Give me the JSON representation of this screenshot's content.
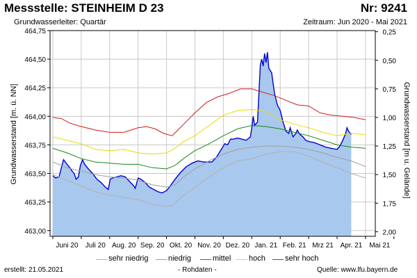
{
  "header": {
    "title": "Messstelle: STEINHEIM D 23",
    "number": "Nr: 9241",
    "aquifer": "Grundwasserleiter: Quartär",
    "period": "Zeitraum: Jun 2020 - Mai 2021"
  },
  "footer": {
    "created": "erstellt:  21.05.2021",
    "raw": "- Rohdaten -",
    "source": "Quelle:  www.lfu.bayern.de"
  },
  "colors": {
    "level_fill": "#a9c8ee",
    "level_line": "#0000cc",
    "sehr_niedrig": "#b0b0b0",
    "niedrig": "#a39c98",
    "mittel": "#148a14",
    "hoch": "#e6dc00",
    "sehr_hoch": "#d81818"
  },
  "chart_data": {
    "type": "area",
    "ylabel": "Grundwasserstand [m. ü. NN]",
    "ylabel_right": "Grundwasserstand [m u. Gelände]",
    "ylim": [
      462.95,
      464.75
    ],
    "yticks": [
      "463,00",
      "463,25",
      "463,50",
      "463,75",
      "464,00",
      "464,25",
      "464,50",
      "464,75"
    ],
    "yticks_right": [
      "0,25",
      "0,50",
      "0,75",
      "1,00",
      "1,25",
      "1,50",
      "1,75",
      "2,00"
    ],
    "x_labels": [
      "Juni 20",
      "Juli 20",
      "Aug. 20",
      "Sep. 20",
      "Okt. 20",
      "Nov. 20",
      "Dez. 20",
      "Jan. 21",
      "Feb. 21",
      "Mrz 21",
      "Apr. 21",
      "Mai 21"
    ],
    "grid": true,
    "legend_position": "bottom",
    "legend": [
      "sehr niedrig",
      "niedrig",
      "mittel",
      "hoch",
      "sehr hoch"
    ],
    "series": [
      {
        "name": "Rohdaten",
        "points": [
          [
            0,
            463.48
          ],
          [
            0.1,
            463.46
          ],
          [
            0.22,
            463.47
          ],
          [
            0.3,
            463.55
          ],
          [
            0.38,
            463.62
          ],
          [
            0.5,
            463.58
          ],
          [
            0.6,
            463.55
          ],
          [
            0.68,
            463.52
          ],
          [
            0.75,
            463.5
          ],
          [
            0.82,
            463.45
          ],
          [
            0.9,
            463.47
          ],
          [
            0.97,
            463.57
          ],
          [
            1.05,
            463.62
          ],
          [
            1.12,
            463.58
          ],
          [
            1.25,
            463.54
          ],
          [
            1.4,
            463.5
          ],
          [
            1.55,
            463.45
          ],
          [
            1.7,
            463.42
          ],
          [
            1.85,
            463.38
          ],
          [
            1.95,
            463.36
          ],
          [
            2.02,
            463.45
          ],
          [
            2.1,
            463.46
          ],
          [
            2.25,
            463.47
          ],
          [
            2.4,
            463.48
          ],
          [
            2.55,
            463.47
          ],
          [
            2.7,
            463.43
          ],
          [
            2.85,
            463.39
          ],
          [
            2.9,
            463.37
          ],
          [
            3.0,
            463.46
          ],
          [
            3.1,
            463.45
          ],
          [
            3.25,
            463.42
          ],
          [
            3.4,
            463.38
          ],
          [
            3.55,
            463.36
          ],
          [
            3.7,
            463.34
          ],
          [
            3.85,
            463.33
          ],
          [
            4.0,
            463.35
          ],
          [
            4.1,
            463.38
          ],
          [
            4.3,
            463.45
          ],
          [
            4.5,
            463.51
          ],
          [
            4.7,
            463.56
          ],
          [
            4.9,
            463.59
          ],
          [
            5.1,
            463.61
          ],
          [
            5.3,
            463.6
          ],
          [
            5.5,
            463.6
          ],
          [
            5.6,
            463.6
          ],
          [
            5.75,
            463.64
          ],
          [
            5.9,
            463.7
          ],
          [
            6.05,
            463.76
          ],
          [
            6.15,
            463.75
          ],
          [
            6.25,
            463.8
          ],
          [
            6.35,
            463.8
          ],
          [
            6.5,
            463.81
          ],
          [
            6.65,
            463.8
          ],
          [
            6.8,
            463.79
          ],
          [
            6.95,
            463.82
          ],
          [
            7.0,
            463.9
          ],
          [
            7.05,
            464.0
          ],
          [
            7.1,
            463.92
          ],
          [
            7.2,
            463.95
          ],
          [
            7.3,
            464.45
          ],
          [
            7.35,
            464.5
          ],
          [
            7.4,
            464.44
          ],
          [
            7.45,
            464.55
          ],
          [
            7.5,
            464.47
          ],
          [
            7.55,
            464.56
          ],
          [
            7.6,
            464.42
          ],
          [
            7.7,
            464.38
          ],
          [
            7.8,
            464.2
          ],
          [
            7.9,
            464.1
          ],
          [
            8.0,
            464.05
          ],
          [
            8.1,
            463.95
          ],
          [
            8.2,
            463.87
          ],
          [
            8.3,
            463.85
          ],
          [
            8.35,
            463.9
          ],
          [
            8.45,
            463.82
          ],
          [
            8.55,
            463.85
          ],
          [
            8.6,
            463.88
          ],
          [
            8.7,
            463.84
          ],
          [
            8.8,
            463.82
          ],
          [
            8.9,
            463.79
          ],
          [
            9.0,
            463.78
          ],
          [
            9.2,
            463.77
          ],
          [
            9.4,
            463.75
          ],
          [
            9.6,
            463.73
          ],
          [
            9.8,
            463.72
          ],
          [
            10.0,
            463.71
          ],
          [
            10.1,
            463.74
          ],
          [
            10.2,
            463.79
          ],
          [
            10.3,
            463.85
          ],
          [
            10.35,
            463.9
          ],
          [
            10.4,
            463.87
          ],
          [
            10.5,
            463.84
          ]
        ]
      },
      {
        "name": "sehr niedrig",
        "points": [
          [
            0,
            463.49
          ],
          [
            0.5,
            463.44
          ],
          [
            1.0,
            463.39
          ],
          [
            1.5,
            463.34
          ],
          [
            2.0,
            463.31
          ],
          [
            2.5,
            463.29
          ],
          [
            3.0,
            463.27
          ],
          [
            3.5,
            463.23
          ],
          [
            4.0,
            463.21
          ],
          [
            4.2,
            463.22
          ],
          [
            4.5,
            463.29
          ],
          [
            5.0,
            463.38
          ],
          [
            5.5,
            463.47
          ],
          [
            6.0,
            463.55
          ],
          [
            6.5,
            463.61
          ],
          [
            7.0,
            463.63
          ],
          [
            7.5,
            463.67
          ],
          [
            8.0,
            463.69
          ],
          [
            8.5,
            463.69
          ],
          [
            9.0,
            463.65
          ],
          [
            9.5,
            463.6
          ],
          [
            10.0,
            463.55
          ],
          [
            10.5,
            463.5
          ],
          [
            11.0,
            463.46
          ]
        ]
      },
      {
        "name": "niedrig",
        "points": [
          [
            0,
            463.6
          ],
          [
            0.5,
            463.55
          ],
          [
            1.0,
            463.52
          ],
          [
            1.5,
            463.49
          ],
          [
            2.0,
            463.47
          ],
          [
            2.5,
            463.46
          ],
          [
            3.0,
            463.44
          ],
          [
            3.5,
            463.4
          ],
          [
            4.0,
            463.38
          ],
          [
            4.3,
            463.4
          ],
          [
            4.6,
            463.47
          ],
          [
            5.0,
            463.54
          ],
          [
            5.5,
            463.61
          ],
          [
            6.0,
            463.67
          ],
          [
            6.5,
            463.71
          ],
          [
            7.0,
            463.73
          ],
          [
            7.5,
            463.74
          ],
          [
            8.0,
            463.74
          ],
          [
            8.5,
            463.73
          ],
          [
            9.0,
            463.71
          ],
          [
            9.5,
            463.68
          ],
          [
            10.0,
            463.64
          ],
          [
            10.5,
            463.61
          ],
          [
            11.0,
            463.56
          ]
        ]
      },
      {
        "name": "mittel",
        "points": [
          [
            0,
            463.72
          ],
          [
            0.5,
            463.68
          ],
          [
            1.0,
            463.63
          ],
          [
            1.5,
            463.6
          ],
          [
            2.0,
            463.59
          ],
          [
            2.5,
            463.58
          ],
          [
            3.0,
            463.58
          ],
          [
            3.5,
            463.55
          ],
          [
            4.0,
            463.54
          ],
          [
            4.3,
            463.57
          ],
          [
            4.6,
            463.63
          ],
          [
            5.0,
            463.7
          ],
          [
            5.5,
            463.76
          ],
          [
            6.0,
            463.83
          ],
          [
            6.5,
            463.89
          ],
          [
            7.0,
            463.92
          ],
          [
            7.5,
            463.91
          ],
          [
            8.0,
            463.89
          ],
          [
            8.5,
            463.86
          ],
          [
            9.0,
            463.83
          ],
          [
            9.5,
            463.79
          ],
          [
            10.0,
            463.75
          ],
          [
            10.5,
            463.73
          ],
          [
            11.0,
            463.72
          ]
        ]
      },
      {
        "name": "hoch",
        "points": [
          [
            0,
            463.82
          ],
          [
            0.5,
            463.79
          ],
          [
            1.0,
            463.76
          ],
          [
            1.5,
            463.71
          ],
          [
            2.0,
            463.7
          ],
          [
            2.5,
            463.71
          ],
          [
            3.0,
            463.68
          ],
          [
            3.5,
            463.67
          ],
          [
            4.0,
            463.68
          ],
          [
            4.3,
            463.72
          ],
          [
            4.6,
            463.78
          ],
          [
            5.0,
            463.83
          ],
          [
            5.5,
            463.92
          ],
          [
            6.0,
            464.01
          ],
          [
            6.5,
            464.05
          ],
          [
            7.0,
            464.06
          ],
          [
            7.5,
            464.04
          ],
          [
            8.0,
            463.97
          ],
          [
            8.5,
            463.93
          ],
          [
            9.0,
            463.9
          ],
          [
            9.5,
            463.86
          ],
          [
            10.0,
            463.83
          ],
          [
            10.5,
            463.85
          ],
          [
            11.0,
            463.84
          ]
        ]
      },
      {
        "name": "sehr hoch",
        "points": [
          [
            0,
            463.99
          ],
          [
            0.3,
            463.98
          ],
          [
            0.6,
            463.94
          ],
          [
            1.0,
            463.91
          ],
          [
            1.5,
            463.88
          ],
          [
            2.0,
            463.86
          ],
          [
            2.5,
            463.86
          ],
          [
            3.0,
            463.9
          ],
          [
            3.3,
            463.91
          ],
          [
            3.6,
            463.89
          ],
          [
            3.9,
            463.85
          ],
          [
            4.2,
            463.83
          ],
          [
            4.6,
            463.93
          ],
          [
            5.0,
            464.03
          ],
          [
            5.4,
            464.12
          ],
          [
            5.8,
            464.17
          ],
          [
            6.2,
            464.2
          ],
          [
            6.6,
            464.24
          ],
          [
            7.0,
            464.24
          ],
          [
            7.4,
            464.21
          ],
          [
            7.8,
            464.18
          ],
          [
            8.2,
            464.14
          ],
          [
            8.6,
            464.1
          ],
          [
            9.0,
            464.09
          ],
          [
            9.4,
            464.03
          ],
          [
            9.8,
            464.01
          ],
          [
            10.2,
            464.0
          ],
          [
            10.6,
            463.99
          ],
          [
            11.0,
            463.97
          ]
        ]
      }
    ]
  }
}
